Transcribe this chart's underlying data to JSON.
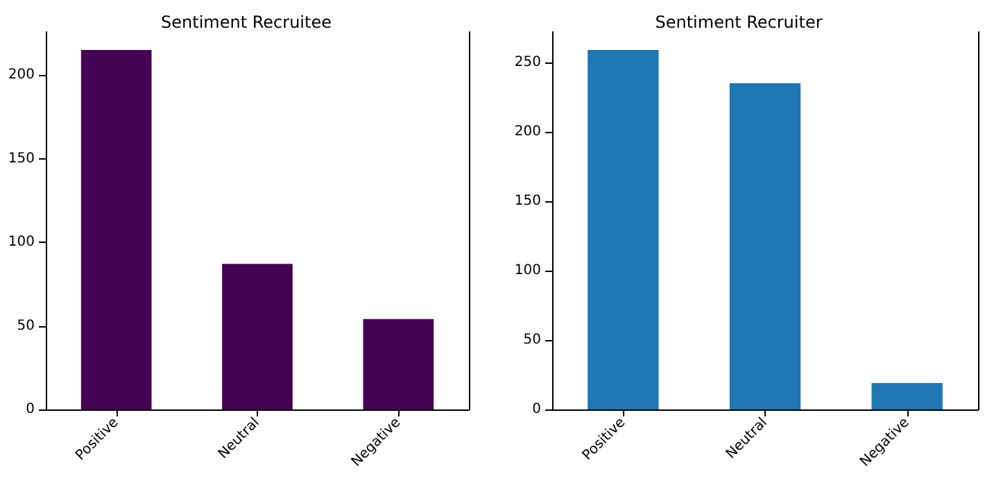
{
  "chart_data": [
    {
      "type": "bar",
      "title": "Sentiment Recruitee",
      "categories": [
        "Positive",
        "Neutral",
        "Negative"
      ],
      "values": [
        215,
        87,
        54
      ],
      "color": "#440154",
      "ylim": [
        0,
        225.75
      ],
      "yticks": [
        0,
        50,
        100,
        150,
        200
      ],
      "grid": false
    },
    {
      "type": "bar",
      "title": "Sentiment Recruiter",
      "categories": [
        "Positive",
        "Neutral",
        "Negative"
      ],
      "values": [
        259,
        235,
        19
      ],
      "color": "#1f77b4",
      "ylim": [
        0,
        271.95
      ],
      "yticks": [
        0,
        50,
        100,
        150,
        200,
        250
      ],
      "grid": false
    }
  ]
}
